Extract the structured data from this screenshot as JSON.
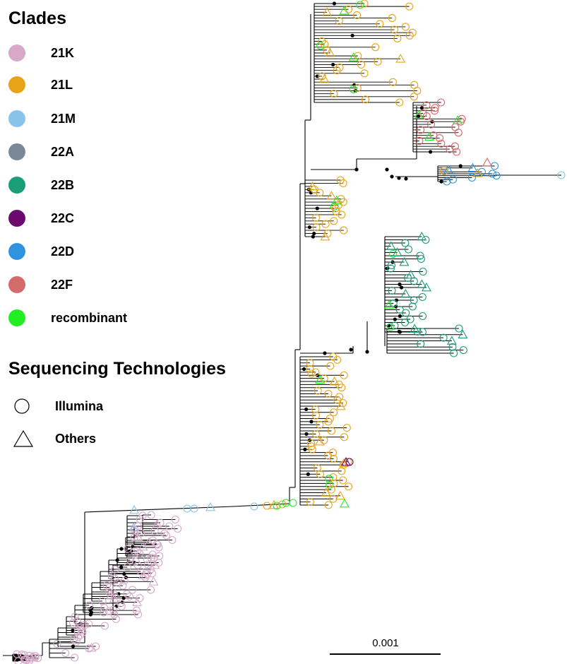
{
  "legend": {
    "clades_title": "Clades",
    "clades": [
      {
        "label": "21K",
        "color": "#d8a8c8"
      },
      {
        "label": "21L",
        "color": "#e8a418"
      },
      {
        "label": "21M",
        "color": "#88c4ea"
      },
      {
        "label": "22A",
        "color": "#7b8898"
      },
      {
        "label": "22B",
        "color": "#1a9e77"
      },
      {
        "label": "22C",
        "color": "#6a0a6e"
      },
      {
        "label": "22D",
        "color": "#2f94e0"
      },
      {
        "label": "22F",
        "color": "#d46a6a"
      },
      {
        "label": "recombinant",
        "color": "#22ee22"
      }
    ],
    "tech_title": "Sequencing Technologies",
    "technologies": [
      {
        "label": "Illumina",
        "shape": "circle-icon"
      },
      {
        "label": "Others",
        "shape": "triangle-icon"
      }
    ]
  },
  "scale_bar": {
    "label": "0.001"
  },
  "colors": {
    "branch": "#000000",
    "node": "#000000"
  }
}
